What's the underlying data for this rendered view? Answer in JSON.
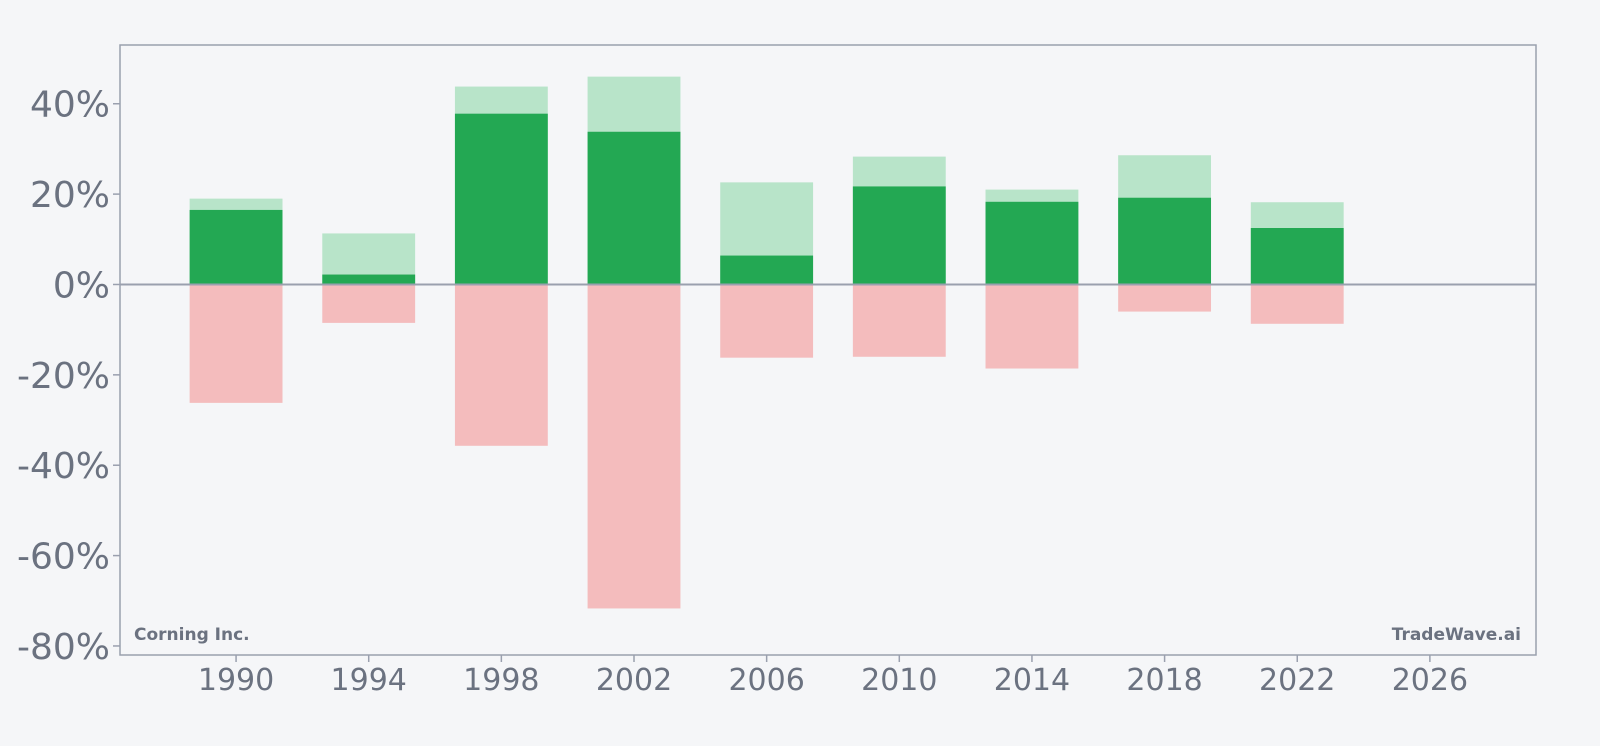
{
  "chart_data": {
    "type": "bar",
    "title": "",
    "xlabel": "",
    "ylabel": "",
    "x_range": [
      1986.5,
      2029.2
    ],
    "ylim": [
      -82,
      53
    ],
    "y_ticks": [
      40,
      20,
      0,
      -20,
      -40,
      -60,
      -80
    ],
    "y_tick_labels": [
      "40%",
      "20%",
      "0%",
      "-20%",
      "-40%",
      "-60%",
      "-80%"
    ],
    "x_ticks": [
      1990,
      1994,
      1998,
      2002,
      2006,
      2010,
      2014,
      2018,
      2022,
      2026
    ],
    "x_tick_labels": [
      "1990",
      "1994",
      "1998",
      "2002",
      "2006",
      "2010",
      "2014",
      "2018",
      "2022",
      "2026"
    ],
    "bar_width_years": 2.8,
    "grid": false,
    "legend": "none",
    "colors": {
      "bar_dark": "#23a853",
      "bar_light": "#b8e4c9",
      "bar_negative": "#f4bcbd",
      "frame": "#9aa0ae",
      "zero_line": "#9aa0ae",
      "text": "#6b7280",
      "background": "#f5f6f8"
    },
    "x": [
      1990,
      1994,
      1998,
      2002,
      2006,
      2010,
      2014,
      2018,
      2022
    ],
    "series": [
      {
        "key": "dark",
        "values": [
          16.5,
          2.2,
          37.8,
          33.8,
          6.4,
          21.7,
          18.3,
          19.2,
          12.5
        ]
      },
      {
        "key": "light",
        "values": [
          19.0,
          11.3,
          43.8,
          46.0,
          22.6,
          28.3,
          21.0,
          28.6,
          18.2
        ]
      },
      {
        "key": "negative",
        "values": [
          -26.2,
          -8.5,
          -35.7,
          -71.7,
          -16.2,
          -16.0,
          -18.6,
          -6.0,
          -8.7
        ]
      }
    ],
    "annotations": {
      "left": "Corning Inc.",
      "right": "TradeWave.ai"
    }
  }
}
